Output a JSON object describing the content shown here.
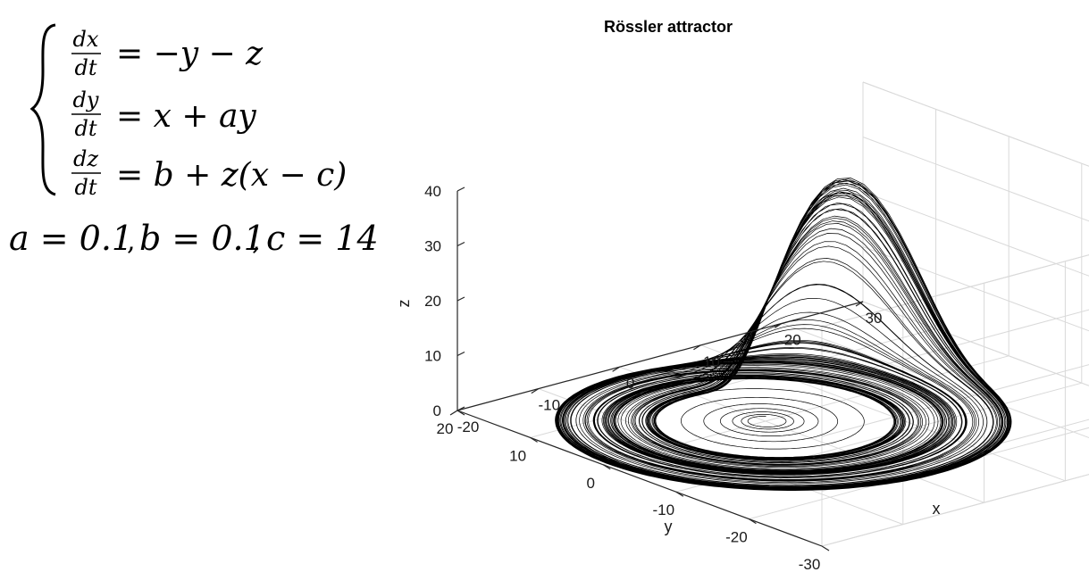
{
  "equations": {
    "eq1": {
      "num": "dx",
      "den": "dt",
      "rhs": "= −y − z"
    },
    "eq2": {
      "num": "dy",
      "den": "dt",
      "rhs": "= x + ay"
    },
    "eq3": {
      "num": "dz",
      "den": "dt",
      "rhs": "= b + z(x − c)"
    },
    "params": {
      "a_label": "a = 0.1",
      "sep1": ",",
      "b_label": "b = 0.1",
      "sep2": ",",
      "c_label": "c = 14",
      "a": 0.1,
      "b": 0.1,
      "c": 14
    }
  },
  "chart_data": {
    "type": "line",
    "title": "Rössler attractor",
    "xlabel": "x",
    "ylabel": "y",
    "zlabel": "z",
    "x_ticks": [
      "-20",
      "-10",
      "0",
      "10",
      "20",
      "30"
    ],
    "y_ticks": [
      "-30",
      "-20",
      "-10",
      "0",
      "10",
      "20"
    ],
    "z_ticks": [
      "0",
      "10",
      "20",
      "30",
      "40"
    ],
    "xlim": [
      -20,
      30
    ],
    "ylim": [
      -30,
      20
    ],
    "zlim": [
      0,
      40
    ],
    "grid": true,
    "line_color": "#000000",
    "series": [
      {
        "points_xyz": [
          [
            0,
            0,
            0.1
          ],
          [
            0.8,
            0.5,
            0.1
          ],
          [
            -1.6,
            -0.4,
            0.1
          ],
          [
            0.5,
            -2.2,
            0.1
          ],
          [
            2.6,
            1.0,
            0.1
          ],
          [
            -1.1,
            3.4,
            0.1
          ],
          [
            -4.3,
            -1.2,
            0.1
          ],
          [
            1.0,
            -5.4,
            0.1
          ],
          [
            6.3,
            0.8,
            0.1
          ],
          [
            -0.4,
            7.4,
            0.1
          ],
          [
            -8.5,
            0.4,
            0.1
          ],
          [
            -0.2,
            -9.6,
            0.1
          ],
          [
            10.6,
            0,
            0.1
          ],
          [
            0.2,
            11.7,
            0.1
          ],
          [
            -12.7,
            -0.6,
            0.1
          ],
          [
            -1.2,
            -13.5,
            0.1
          ],
          [
            14.0,
            1.3,
            0.5
          ],
          [
            3.0,
            14.7,
            0.3
          ],
          [
            -14.6,
            2.5,
            0.1
          ],
          [
            -5.7,
            -14.1,
            0.1
          ],
          [
            12.6,
            -8.0,
            0.3
          ],
          [
            15.2,
            5.0,
            4.0
          ],
          [
            17.0,
            2.0,
            14.0
          ],
          [
            15.5,
            -1.0,
            28.0
          ],
          [
            10.0,
            -4.0,
            38.0
          ],
          [
            2.0,
            -10.0,
            22.0
          ],
          [
            -6.0,
            -17.0,
            6.0
          ],
          [
            -17.5,
            -8.0,
            0.2
          ],
          [
            -18.5,
            9.0,
            0.1
          ],
          [
            -4.0,
            20.0,
            0.1
          ],
          [
            13.0,
            15.0,
            0.2
          ],
          [
            21.0,
            -2.0,
            1.0
          ],
          [
            19.0,
            -11.0,
            6.0
          ],
          [
            16.0,
            -6.0,
            20.0
          ],
          [
            12.0,
            -3.0,
            32.0
          ],
          [
            6.0,
            -7.0,
            36.0
          ],
          [
            0.0,
            -14.0,
            18.0
          ],
          [
            -9.0,
            -19.0,
            3.0
          ],
          [
            -20.0,
            -5.0,
            0.1
          ],
          [
            -16.0,
            13.0,
            0.1
          ],
          [
            0.0,
            21.5,
            0.1
          ],
          [
            16.0,
            13.0,
            0.4
          ],
          [
            22.0,
            -4.0,
            2.5
          ],
          [
            18.0,
            -13.0,
            9.0
          ],
          [
            15.0,
            -5.0,
            26.0
          ]
        ]
      }
    ]
  }
}
